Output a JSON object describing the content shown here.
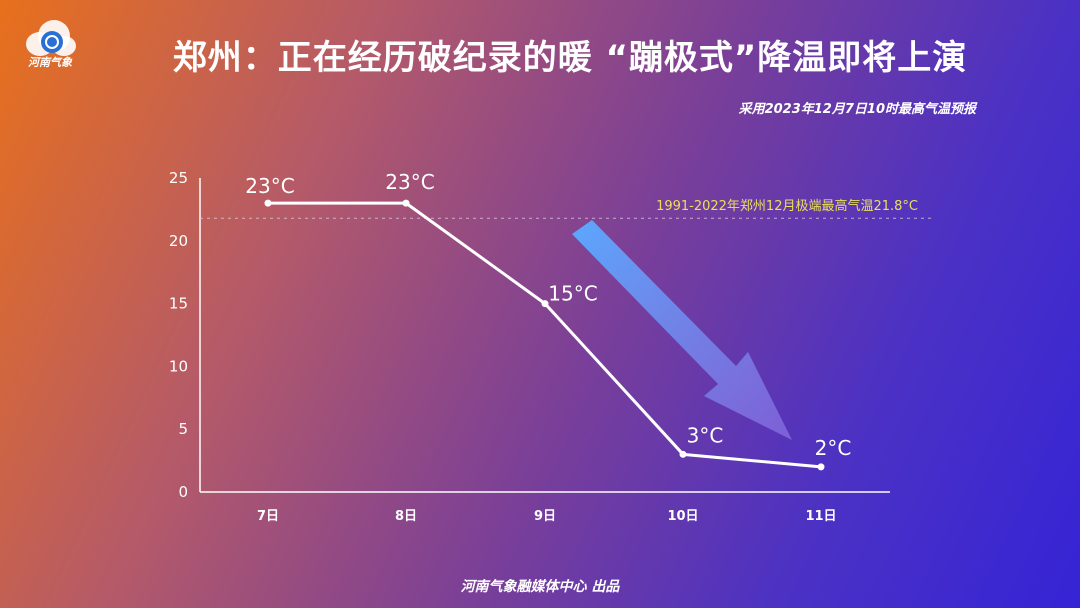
{
  "header": {
    "logo_text": "河南气象",
    "title": "郑州：正在经历破纪录的暖 “蹦极式”降温即将上演",
    "subtitle": "采用2023年12月7日10时最高气温预报"
  },
  "footer": {
    "credit": "河南气象融媒体中心 出品"
  },
  "chart_data": {
    "type": "line",
    "categories": [
      "7日",
      "8日",
      "9日",
      "10日",
      "11日"
    ],
    "values": [
      23,
      23,
      15,
      3,
      2
    ],
    "data_labels": [
      "23°C",
      "23°C",
      "15°C",
      "3°C",
      "2°C"
    ],
    "ylim": [
      0,
      25
    ],
    "yticks": [
      0,
      5,
      10,
      15,
      20,
      25
    ],
    "xlabel": "",
    "ylabel": "",
    "grid": false,
    "reference_line": {
      "value": 21.8,
      "label": "1991-2022年郑州12月极端最高气温21.8°C",
      "color": "#e8e05a"
    },
    "annotation": "downward-arrow",
    "colors": {
      "line": "#ffffff",
      "arrow_start": "#5aa8ff",
      "arrow_end": "#8a6ee0"
    }
  }
}
